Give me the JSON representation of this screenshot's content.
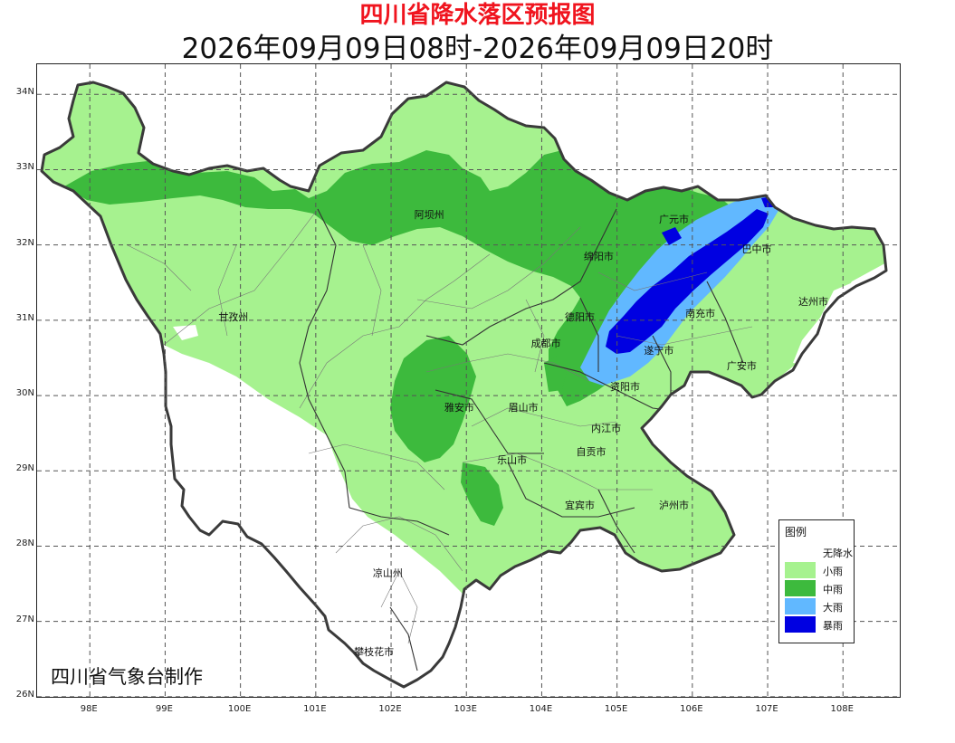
{
  "header": {
    "title": "四川省降水落区预报图",
    "subtitle": "2026年09月09日08时-2026年09月09日20时"
  },
  "axes": {
    "lat_labels": [
      "34N",
      "33N",
      "32N",
      "31N",
      "30N",
      "29N",
      "28N",
      "27N",
      "26N"
    ],
    "lon_labels": [
      "98E",
      "99E",
      "100E",
      "101E",
      "102E",
      "103E",
      "104E",
      "105E",
      "106E",
      "107E",
      "108E"
    ]
  },
  "cities": [
    {
      "name": "阿坝州",
      "lon": 102.5,
      "lat": 32.4
    },
    {
      "name": "甘孜州",
      "lon": 99.9,
      "lat": 31.05
    },
    {
      "name": "绵阳市",
      "lon": 104.75,
      "lat": 31.85
    },
    {
      "name": "德阳市",
      "lon": 104.5,
      "lat": 31.05
    },
    {
      "name": "成都市",
      "lon": 104.05,
      "lat": 30.7
    },
    {
      "name": "广元市",
      "lon": 105.75,
      "lat": 32.35
    },
    {
      "name": "巴中市",
      "lon": 106.85,
      "lat": 31.95
    },
    {
      "name": "达州市",
      "lon": 107.6,
      "lat": 31.25
    },
    {
      "name": "南充市",
      "lon": 106.1,
      "lat": 31.1
    },
    {
      "name": "遂宁市",
      "lon": 105.55,
      "lat": 30.6
    },
    {
      "name": "广安市",
      "lon": 106.65,
      "lat": 30.4
    },
    {
      "name": "资阳市",
      "lon": 105.1,
      "lat": 30.12
    },
    {
      "name": "雅安市",
      "lon": 102.9,
      "lat": 29.85
    },
    {
      "name": "眉山市",
      "lon": 103.75,
      "lat": 29.85
    },
    {
      "name": "内江市",
      "lon": 104.85,
      "lat": 29.57
    },
    {
      "name": "乐山市",
      "lon": 103.6,
      "lat": 29.15
    },
    {
      "name": "自贡市",
      "lon": 104.65,
      "lat": 29.25
    },
    {
      "name": "宜宾市",
      "lon": 104.5,
      "lat": 28.55
    },
    {
      "name": "泸州市",
      "lon": 105.75,
      "lat": 28.55
    },
    {
      "name": "凉山州",
      "lon": 101.95,
      "lat": 27.65
    },
    {
      "name": "攀枝花市",
      "lon": 101.7,
      "lat": 26.6
    }
  ],
  "legend": {
    "title": "图例",
    "items": [
      {
        "label": "无降水",
        "color": "#ffffff"
      },
      {
        "label": "小雨",
        "color": "#a6f28f"
      },
      {
        "label": "中雨",
        "color": "#3dba3d"
      },
      {
        "label": "大雨",
        "color": "#61b8ff"
      },
      {
        "label": "暴雨",
        "color": "#0000e1"
      }
    ]
  },
  "credit": "四川省气象台制作"
}
